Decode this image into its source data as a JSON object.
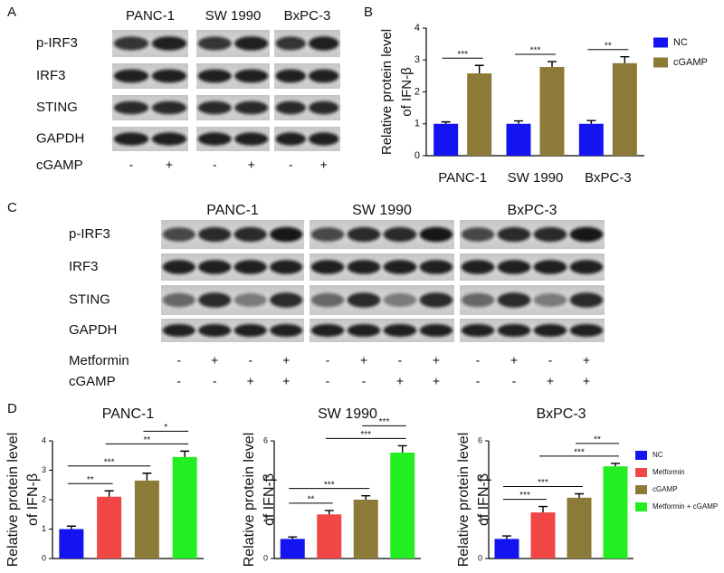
{
  "blots": [
    {
      "panel": "A",
      "cell_lines": [
        "PANC-1",
        "SW 1990",
        "BxPC-3"
      ],
      "proteins": [
        "p-IRF3",
        "IRF3",
        "STING",
        "GAPDH"
      ],
      "treatments": [
        {
          "name": "cGAMP",
          "signs": [
            "-",
            "+",
            "-",
            "+",
            "-",
            "+"
          ]
        }
      ]
    },
    {
      "panel": "C",
      "cell_lines": [
        "PANC-1",
        "SW 1990",
        "BxPC-3"
      ],
      "proteins": [
        "p-IRF3",
        "IRF3",
        "STING",
        "GAPDH"
      ],
      "treatments": [
        {
          "name": "Metformin",
          "signs": [
            "-",
            "+",
            "-",
            "+",
            "-",
            "+",
            "-",
            "+",
            "-",
            "+",
            "-",
            "+"
          ]
        },
        {
          "name": "cGAMP",
          "signs": [
            "-",
            "-",
            "+",
            "+",
            "-",
            "-",
            "+",
            "+",
            "-",
            "-",
            "+",
            "+"
          ]
        }
      ]
    }
  ],
  "chart_data": [
    {
      "type": "bar",
      "panel": "B",
      "ylabel": [
        "Relative protein level",
        "of IFN-β"
      ],
      "categories": [
        "PANC-1",
        "SW 1990",
        "BxPC-3"
      ],
      "series": [
        {
          "name": "NC",
          "color": "#1414f0",
          "values": [
            1,
            1,
            1
          ],
          "errors": [
            0.06,
            0.09,
            0.1
          ]
        },
        {
          "name": "cGAMP",
          "color": "#8c7a38",
          "values": [
            2.58,
            2.78,
            2.9
          ],
          "errors": [
            0.25,
            0.17,
            0.2
          ]
        }
      ],
      "ylim": [
        0,
        4
      ],
      "yticks": [
        0,
        1,
        2,
        3,
        4
      ],
      "comparisons": [
        {
          "category": 0,
          "text": "***"
        },
        {
          "category": 1,
          "text": "***"
        },
        {
          "category": 2,
          "text": "**"
        }
      ],
      "legend": "right"
    },
    {
      "type": "bar",
      "panel": "D",
      "title": "PANC-1",
      "ylabel": [
        "Relative protein level",
        "of IFN-β"
      ],
      "categories": [
        null
      ],
      "series": [
        {
          "color": "#1414f0",
          "values": [
            1.0
          ],
          "errors": [
            0.1
          ]
        },
        {
          "color": "#f04646",
          "values": [
            2.1
          ],
          "errors": [
            0.2
          ]
        },
        {
          "color": "#8c7a38",
          "values": [
            2.65
          ],
          "errors": [
            0.25
          ]
        },
        {
          "color": "#22ee22",
          "values": [
            3.45
          ],
          "errors": [
            0.2
          ]
        }
      ],
      "ylim": [
        0,
        4
      ],
      "yticks": [
        0,
        1,
        2,
        3,
        4
      ],
      "comparisons": [
        {
          "bars": [
            0,
            1
          ],
          "text": "**"
        },
        {
          "bars": [
            0,
            2
          ],
          "text": "***"
        },
        {
          "bars": [
            1,
            3
          ],
          "text": "**"
        },
        {
          "bars": [
            2,
            3
          ],
          "text": "*"
        }
      ]
    },
    {
      "type": "bar",
      "title": "SW 1990",
      "ylabel": [
        "Relative protein level",
        "of IFN-β"
      ],
      "categories": [
        null
      ],
      "series": [
        {
          "color": "#1414f0",
          "values": [
            1.0
          ],
          "errors": [
            0.1
          ]
        },
        {
          "color": "#f04646",
          "values": [
            2.25
          ],
          "errors": [
            0.2
          ]
        },
        {
          "color": "#8c7a38",
          "values": [
            3.0
          ],
          "errors": [
            0.2
          ]
        },
        {
          "color": "#22ee22",
          "values": [
            5.4
          ],
          "errors": [
            0.35
          ]
        }
      ],
      "ylim": [
        0,
        6
      ],
      "yticks": [
        0,
        2,
        4,
        6
      ],
      "comparisons": [
        {
          "bars": [
            0,
            1
          ],
          "text": "**"
        },
        {
          "bars": [
            0,
            2
          ],
          "text": "***"
        },
        {
          "bars": [
            1,
            3
          ],
          "text": "***"
        },
        {
          "bars": [
            2,
            3
          ],
          "text": "***"
        }
      ]
    },
    {
      "type": "bar",
      "title": "BxPC-3",
      "ylabel": [
        "Relative protein level",
        "of IFN-β"
      ],
      "categories": [
        null
      ],
      "series": [
        {
          "name": "NC",
          "color": "#1414f0",
          "values": [
            1.0
          ],
          "errors": [
            0.15
          ]
        },
        {
          "name": "Metformin",
          "color": "#f04646",
          "values": [
            2.35
          ],
          "errors": [
            0.3
          ]
        },
        {
          "name": "cGAMP",
          "color": "#8c7a38",
          "values": [
            3.1
          ],
          "errors": [
            0.2
          ]
        },
        {
          "name": "Metformin + cGAMP",
          "color": "#22ee22",
          "values": [
            4.7
          ],
          "errors": [
            0.15
          ]
        }
      ],
      "ylim": [
        0,
        6
      ],
      "yticks": [
        0,
        2,
        4,
        6
      ],
      "comparisons": [
        {
          "bars": [
            0,
            1
          ],
          "text": "***"
        },
        {
          "bars": [
            0,
            2
          ],
          "text": "***"
        },
        {
          "bars": [
            1,
            3
          ],
          "text": "***"
        },
        {
          "bars": [
            2,
            3
          ],
          "text": "**"
        }
      ],
      "legend": "right"
    }
  ]
}
